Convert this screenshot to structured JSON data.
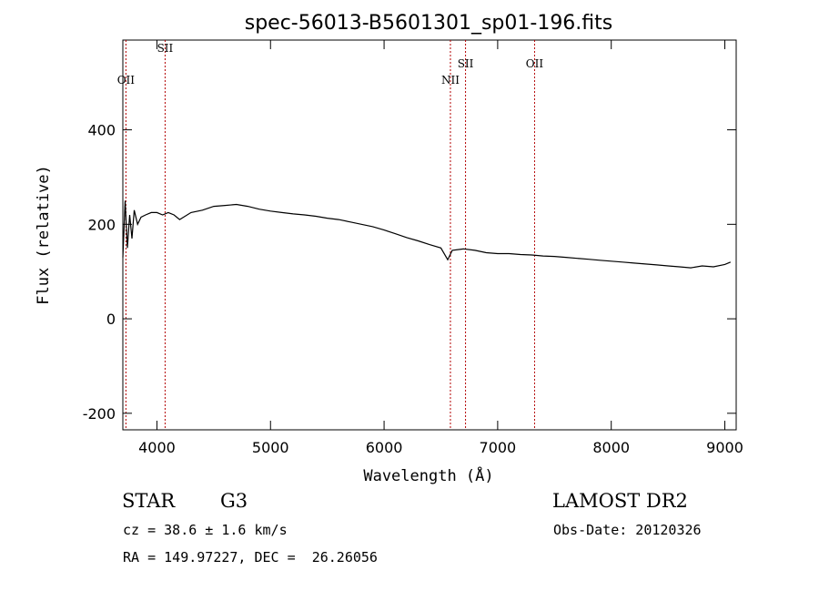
{
  "chart_data": {
    "type": "line",
    "title": "spec-56013-B5601301_sp01-196.fits",
    "xlabel": "Wavelength (Å)",
    "ylabel": "Flux (relative)",
    "xlim": [
      3700,
      9100
    ],
    "ylim": [
      -235,
      590
    ],
    "x_ticks": [
      4000,
      5000,
      6000,
      7000,
      8000,
      9000
    ],
    "y_ticks": [
      -200,
      0,
      200,
      400
    ],
    "grid": false,
    "series": [
      {
        "x": [
          3700,
          3720,
          3740,
          3760,
          3780,
          3800,
          3830,
          3860,
          3900,
          3950,
          4000,
          4050,
          4100,
          4150,
          4200,
          4300,
          4400,
          4500,
          4600,
          4700,
          4800,
          4900,
          5000,
          5100,
          5200,
          5300,
          5400,
          5500,
          5600,
          5700,
          5800,
          5900,
          6000,
          6100,
          6200,
          6300,
          6400,
          6500,
          6560,
          6600,
          6700,
          6800,
          6900,
          7000,
          7100,
          7200,
          7300,
          7400,
          7500,
          7600,
          7700,
          7800,
          7900,
          8000,
          8100,
          8200,
          8300,
          8400,
          8500,
          8600,
          8700,
          8800,
          8900,
          9000,
          9050
        ],
        "y": [
          130,
          250,
          150,
          220,
          170,
          230,
          200,
          215,
          220,
          225,
          225,
          220,
          225,
          220,
          210,
          225,
          230,
          238,
          240,
          242,
          238,
          232,
          228,
          225,
          222,
          220,
          217,
          213,
          210,
          205,
          200,
          195,
          188,
          180,
          172,
          165,
          157,
          150,
          125,
          145,
          148,
          145,
          140,
          138,
          138,
          136,
          135,
          133,
          132,
          130,
          128,
          126,
          124,
          122,
          120,
          118,
          116,
          114,
          112,
          110,
          108,
          112,
          110,
          115,
          120
        ]
      }
    ],
    "lines": [
      {
        "label": "OII",
        "x": 3727
      },
      {
        "label": "SII",
        "x": 4072
      },
      {
        "label": "NII",
        "x": 6584
      },
      {
        "label": "SII",
        "x": 6717
      },
      {
        "label": "OII",
        "x": 7325
      }
    ]
  },
  "info": {
    "class": "STAR",
    "subclass": "G3",
    "survey": "LAMOST DR2",
    "cz": "cz = 38.6 ± 1.6 km/s",
    "obs_date": "Obs-Date: 20120326",
    "radec": "RA = 149.97227, DEC =  26.26056"
  }
}
